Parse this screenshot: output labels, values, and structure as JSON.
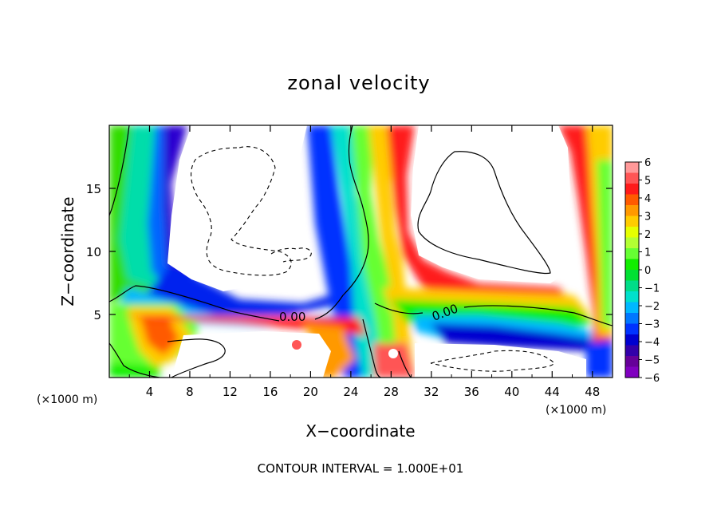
{
  "chart_data": {
    "type": "heatmap",
    "title": "zonal velocity",
    "xlabel": "X−coordinate",
    "ylabel": "Z−coordinate",
    "x_unit": "(×1000 m)",
    "x_unit_right": "(×1000 m)",
    "footer": "CONTOUR INTERVAL = 1.000E+01",
    "xlim": [
      0,
      50
    ],
    "ylim": [
      0,
      20
    ],
    "x_ticks": [
      4,
      8,
      12,
      16,
      20,
      24,
      28,
      32,
      36,
      40,
      44,
      48
    ],
    "x_tick_labels": [
      "4",
      "8",
      "12",
      "16",
      "20",
      "24",
      "28",
      "32",
      "36",
      "40",
      "44",
      "48"
    ],
    "y_ticks": [
      5,
      10,
      15
    ],
    "y_tick_labels": [
      "5",
      "10",
      "15"
    ],
    "colorbar": {
      "range": [
        -6,
        6
      ],
      "ticks": [
        6,
        5,
        4,
        3,
        2,
        1,
        0,
        -1,
        -2,
        -3,
        -4,
        -5,
        -6
      ],
      "tick_labels": [
        "6",
        "5",
        "4",
        "3",
        "2",
        "1",
        "0",
        "−1",
        "−2",
        "−3",
        "−4",
        "−5",
        "−6"
      ],
      "colors": [
        "#ff9999",
        "#ff5555",
        "#ff1a1a",
        "#ff5a00",
        "#ff9900",
        "#ffcc00",
        "#e6ff00",
        "#b3ff33",
        "#66ff33",
        "#11ee00",
        "#00e033",
        "#00dd88",
        "#00e0cc",
        "#00b8ff",
        "#0077ff",
        "#0033ff",
        "#0000d0",
        "#3300aa",
        "#660099",
        "#8000c0"
      ]
    },
    "contour_labels": [
      {
        "text": "0.00",
        "x": 17.5,
        "z": 4.8
      },
      {
        "text": "0.00",
        "x": 34.0,
        "z": 5.0
      }
    ]
  }
}
